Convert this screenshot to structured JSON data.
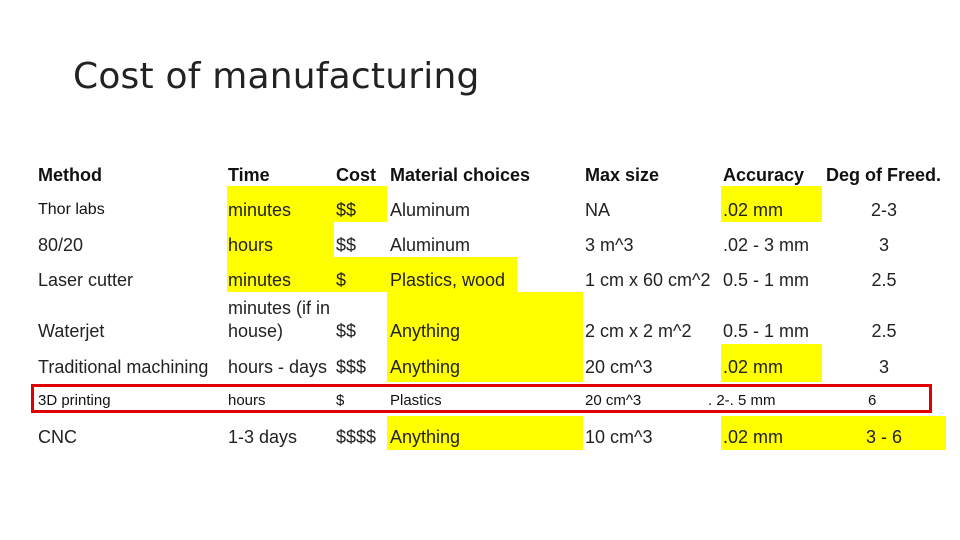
{
  "title": "Cost of manufacturing",
  "columns": [
    "Method",
    "Time",
    "Cost",
    "Material choices",
    "Max size",
    "Accuracy",
    "Deg of Freed."
  ],
  "rows": [
    {
      "method": "Thor labs",
      "time": "minutes",
      "cost": "$$",
      "material": "Aluminum",
      "size": "NA",
      "accuracy": ".02 mm",
      "dof": "2-3"
    },
    {
      "method": "80/20",
      "time": "hours",
      "cost": "$$",
      "material": "Aluminum",
      "size": "3 m^3",
      "accuracy": ".02 - 3 mm",
      "dof": "3"
    },
    {
      "method": "Laser cutter",
      "time": "minutes",
      "cost": "$",
      "material": "Plastics, wood",
      "size": "1 cm x 60 cm^2",
      "accuracy": "0.5 - 1 mm",
      "dof": "2.5"
    },
    {
      "method": "Waterjet",
      "time": "minutes (if in house)",
      "cost": "$$",
      "material": "Anything",
      "size": "2 cm x 2 m^2",
      "accuracy": "0.5 - 1 mm",
      "dof": "2.5"
    },
    {
      "method": "Traditional machining",
      "time": "hours - days",
      "cost": "$$$",
      "material": "Anything",
      "size": "20 cm^3",
      "accuracy": ".02 mm",
      "dof": "3"
    },
    {
      "method": "3D printing",
      "time": "hours",
      "cost": "$",
      "material": "Plastics",
      "size": "20 cm^3",
      "accuracy": ". 2-. 5 mm",
      "dof": "6"
    },
    {
      "method": "CNC",
      "time": "1-3 days",
      "cost": "$$$$",
      "material": "Anything",
      "size": "10 cm^3",
      "accuracy": ".02 mm",
      "dof": "3 - 6"
    }
  ],
  "highlight_color": "#ffff00",
  "outline_color": "#e00000"
}
